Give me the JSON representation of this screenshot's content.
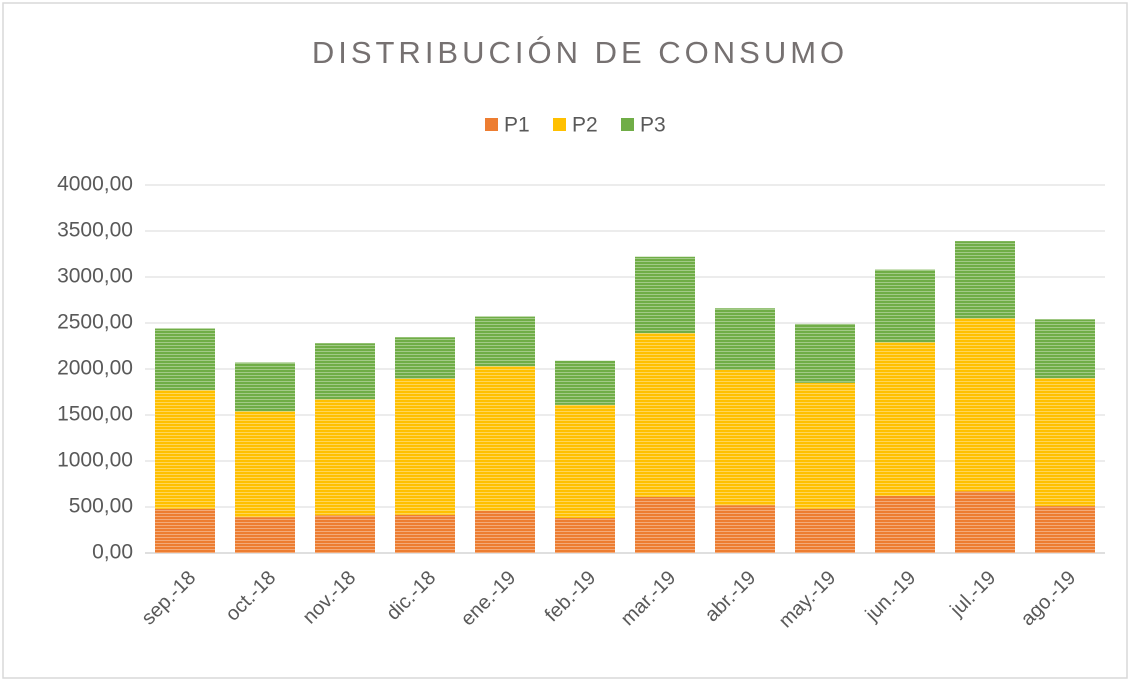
{
  "chart_data": {
    "type": "bar",
    "stacked": true,
    "title": "DISTRIBUCIÓN DE CONSUMO",
    "categories": [
      "sep.-18",
      "oct.-18",
      "nov.-18",
      "dic.-18",
      "ene.-19",
      "feb.-19",
      "mar.-19",
      "abr.-19",
      "may.-19",
      "jun.-19",
      "jul.-19",
      "ago.-19"
    ],
    "series": [
      {
        "name": "P1",
        "color": "#ed7d31",
        "values": [
          480,
          390,
          410,
          415,
          460,
          380,
          610,
          520,
          480,
          620,
          670,
          510
        ]
      },
      {
        "name": "P2",
        "color": "#ffc000",
        "values": [
          1290,
          1150,
          1260,
          1480,
          1570,
          1230,
          1780,
          1470,
          1370,
          1670,
          1880,
          1390
        ]
      },
      {
        "name": "P3",
        "color": "#70ad47",
        "values": [
          670,
          530,
          610,
          450,
          540,
          480,
          830,
          670,
          640,
          790,
          840,
          640
        ]
      }
    ],
    "ylim": [
      0,
      4000
    ],
    "yticks": [
      {
        "value": 0,
        "label": "0,00"
      },
      {
        "value": 500,
        "label": "500,00"
      },
      {
        "value": 1000,
        "label": "1000,00"
      },
      {
        "value": 1500,
        "label": "1500,00"
      },
      {
        "value": 2000,
        "label": "2000,00"
      },
      {
        "value": 2500,
        "label": "2500,00"
      },
      {
        "value": 3000,
        "label": "3000,00"
      },
      {
        "value": 3500,
        "label": "3500,00"
      },
      {
        "value": 4000,
        "label": "4000,00"
      }
    ],
    "grid": true,
    "legend": "top"
  }
}
